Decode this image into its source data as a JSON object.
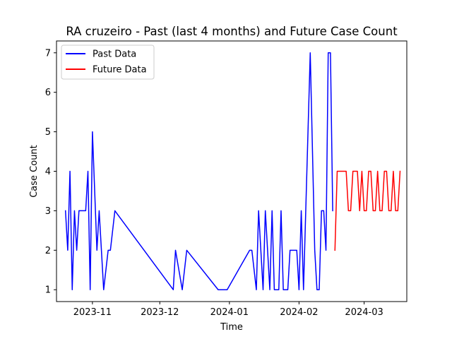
{
  "chart_data": {
    "type": "line",
    "title": "RA cruzeiro - Past (last 4 months) and Future Case Count",
    "xlabel": "Time",
    "ylabel": "Case Count",
    "x_axis_type": "date",
    "xlim": [
      "2023-10-16",
      "2024-03-20"
    ],
    "ylim": [
      0.7,
      7.3
    ],
    "x_ticks": [
      {
        "date": "2023-11-01",
        "label": "2023-11"
      },
      {
        "date": "2023-12-01",
        "label": "2023-12"
      },
      {
        "date": "2024-01-01",
        "label": "2024-01"
      },
      {
        "date": "2024-02-01",
        "label": "2024-02"
      },
      {
        "date": "2024-03-01",
        "label": "2024-03"
      }
    ],
    "y_ticks": [
      1,
      2,
      3,
      4,
      5,
      6,
      7
    ],
    "grid": false,
    "legend_position": "top-left",
    "series": [
      {
        "name": "Past Data",
        "color": "#0000ff",
        "x": [
          "2023-10-20",
          "2023-10-21",
          "2023-10-22",
          "2023-10-23",
          "2023-10-24",
          "2023-10-25",
          "2023-10-26",
          "2023-10-29",
          "2023-10-30",
          "2023-10-31",
          "2023-11-01",
          "2023-11-03",
          "2023-11-04",
          "2023-11-05",
          "2023-11-06",
          "2023-11-08",
          "2023-11-09",
          "2023-11-11",
          "2023-12-07",
          "2023-12-08",
          "2023-12-11",
          "2023-12-13",
          "2023-12-27",
          "2023-12-31",
          "2024-01-10",
          "2024-01-11",
          "2024-01-13",
          "2024-01-14",
          "2024-01-16",
          "2024-01-17",
          "2024-01-19",
          "2024-01-20",
          "2024-01-21",
          "2024-01-23",
          "2024-01-24",
          "2024-01-25",
          "2024-01-27",
          "2024-01-28",
          "2024-01-31",
          "2024-02-01",
          "2024-02-02",
          "2024-02-03",
          "2024-02-06",
          "2024-02-08",
          "2024-02-09",
          "2024-02-10",
          "2024-02-11",
          "2024-02-12",
          "2024-02-13",
          "2024-02-14",
          "2024-02-15",
          "2024-02-16"
        ],
        "y": [
          3,
          2,
          4,
          1,
          3,
          2,
          3,
          3,
          4,
          1,
          5,
          2,
          3,
          2,
          1,
          2,
          2,
          3,
          1,
          2,
          1,
          2,
          1,
          1,
          2,
          2,
          1,
          3,
          1,
          3,
          1,
          3,
          1,
          1,
          3,
          1,
          1,
          2,
          2,
          1,
          3,
          1,
          7,
          2,
          1,
          1,
          3,
          3,
          2,
          7,
          7,
          3
        ]
      },
      {
        "name": "Future Data",
        "color": "#ff0000",
        "x": [
          "2024-02-17",
          "2024-02-18",
          "2024-02-22",
          "2024-02-23",
          "2024-02-24",
          "2024-02-25",
          "2024-02-27",
          "2024-02-28",
          "2024-02-29",
          "2024-03-01",
          "2024-03-02",
          "2024-03-03",
          "2024-03-04",
          "2024-03-05",
          "2024-03-06",
          "2024-03-07",
          "2024-03-08",
          "2024-03-09",
          "2024-03-10",
          "2024-03-11",
          "2024-03-12",
          "2024-03-13",
          "2024-03-14",
          "2024-03-15",
          "2024-03-16",
          "2024-03-17"
        ],
        "y": [
          2,
          4,
          4,
          3,
          3,
          4,
          4,
          3,
          4,
          3,
          3,
          4,
          4,
          3,
          3,
          4,
          3,
          3,
          4,
          4,
          3,
          3,
          4,
          3,
          3,
          4
        ]
      }
    ]
  }
}
